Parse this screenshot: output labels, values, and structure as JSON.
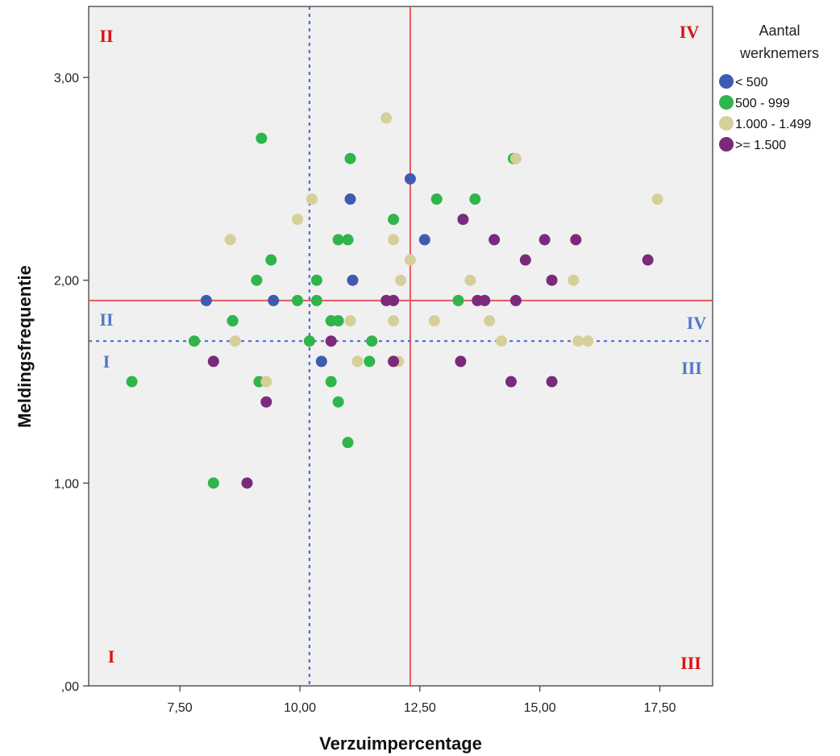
{
  "chart_data": {
    "type": "scatter",
    "xlabel": "Verzuimpercentage",
    "ylabel": "Meldingsfrequentie",
    "xlim": [
      5.6,
      18.6
    ],
    "ylim": [
      0,
      3.35
    ],
    "x_ticks": [
      7.5,
      10,
      12.5,
      15,
      17.5
    ],
    "x_tick_labels": [
      "7,50",
      "10,00",
      "12,50",
      "15,00",
      "17,50"
    ],
    "y_ticks": [
      0,
      1,
      2,
      3
    ],
    "y_tick_labels": [
      ",00",
      "1,00",
      "2,00",
      "3,00"
    ],
    "grid": false,
    "background": "#f0f0f0",
    "legend": {
      "title": "Aantal werknemers",
      "title_lines": [
        "Aantal",
        "werknemers"
      ],
      "placement": "right-top"
    },
    "reference_lines": [
      {
        "orientation": "vertical",
        "value": 12.3,
        "style": "solid",
        "color": "#e8575c"
      },
      {
        "orientation": "horizontal",
        "value": 1.9,
        "style": "solid",
        "color": "#e8575c"
      },
      {
        "orientation": "vertical",
        "value": 10.2,
        "style": "dotted",
        "color": "#4a6fd1"
      },
      {
        "orientation": "horizontal",
        "value": 1.7,
        "style": "dotted",
        "color": "#4a6fd1"
      }
    ],
    "quadrant_labels": [
      {
        "text": "II",
        "color": "#dd1111",
        "position": "top-left"
      },
      {
        "text": "IV",
        "color": "#dd1111",
        "position": "top-right"
      },
      {
        "text": "I",
        "color": "#dd1111",
        "position": "bottom-left"
      },
      {
        "text": "III",
        "color": "#dd1111",
        "position": "bottom-right"
      },
      {
        "text": "II",
        "color": "#5577cc",
        "position": "left-above-dotted"
      },
      {
        "text": "I",
        "color": "#5577cc",
        "position": "left-below-dotted"
      },
      {
        "text": "IV",
        "color": "#5577cc",
        "position": "right-above-dotted"
      },
      {
        "text": "III",
        "color": "#5577cc",
        "position": "right-below-dotted"
      }
    ],
    "series": [
      {
        "name": "< 500",
        "color": "#3f5bb0",
        "points": [
          [
            8.05,
            1.9
          ],
          [
            8.6,
            1.8
          ],
          [
            9.45,
            1.9
          ],
          [
            10.45,
            1.6
          ],
          [
            11.05,
            2.4
          ],
          [
            11.1,
            2.0
          ],
          [
            12.3,
            2.5
          ],
          [
            12.6,
            2.2
          ]
        ]
      },
      {
        "name": "500 - 999",
        "color": "#2fb54a",
        "points": [
          [
            6.5,
            1.5
          ],
          [
            7.8,
            1.7
          ],
          [
            8.2,
            1.0
          ],
          [
            8.6,
            1.8
          ],
          [
            9.1,
            2.0
          ],
          [
            9.2,
            2.7
          ],
          [
            9.15,
            1.5
          ],
          [
            9.4,
            2.1
          ],
          [
            9.95,
            1.9
          ],
          [
            10.2,
            1.7
          ],
          [
            10.35,
            2.0
          ],
          [
            10.35,
            1.9
          ],
          [
            10.65,
            1.8
          ],
          [
            10.65,
            1.5
          ],
          [
            10.8,
            1.8
          ],
          [
            10.8,
            2.2
          ],
          [
            10.8,
            1.4
          ],
          [
            11.0,
            2.2
          ],
          [
            11.05,
            2.6
          ],
          [
            11.0,
            1.2
          ],
          [
            11.45,
            1.6
          ],
          [
            11.5,
            1.7
          ],
          [
            11.95,
            2.3
          ],
          [
            12.85,
            2.4
          ],
          [
            13.3,
            1.9
          ],
          [
            13.65,
            2.4
          ],
          [
            14.45,
            2.6
          ]
        ]
      },
      {
        "name": "1.000 - 1.499",
        "color": "#d6cf9a",
        "points": [
          [
            8.55,
            2.2
          ],
          [
            8.65,
            1.7
          ],
          [
            9.3,
            1.5
          ],
          [
            9.95,
            2.3
          ],
          [
            10.25,
            2.4
          ],
          [
            11.05,
            1.8
          ],
          [
            11.2,
            1.6
          ],
          [
            11.8,
            2.8
          ],
          [
            11.95,
            2.2
          ],
          [
            11.95,
            1.8
          ],
          [
            12.05,
            1.6
          ],
          [
            12.1,
            2.0
          ],
          [
            12.3,
            2.1
          ],
          [
            12.8,
            1.8
          ],
          [
            13.55,
            2.0
          ],
          [
            13.95,
            1.8
          ],
          [
            14.2,
            1.7
          ],
          [
            14.5,
            2.6
          ],
          [
            15.7,
            2.0
          ],
          [
            15.8,
            1.7
          ],
          [
            16.0,
            1.7
          ],
          [
            17.45,
            2.4
          ]
        ]
      },
      {
        "name": ">= 1.500",
        "color": "#7b2a7b",
        "points": [
          [
            8.2,
            1.6
          ],
          [
            8.9,
            1.0
          ],
          [
            9.3,
            1.4
          ],
          [
            10.65,
            1.7
          ],
          [
            11.8,
            1.9
          ],
          [
            11.95,
            1.9
          ],
          [
            11.95,
            1.6
          ],
          [
            13.35,
            1.6
          ],
          [
            13.4,
            2.3
          ],
          [
            13.7,
            1.9
          ],
          [
            13.85,
            1.9
          ],
          [
            14.05,
            2.2
          ],
          [
            14.4,
            1.5
          ],
          [
            14.5,
            1.9
          ],
          [
            14.7,
            2.1
          ],
          [
            15.1,
            2.2
          ],
          [
            15.25,
            2.0
          ],
          [
            15.25,
            1.5
          ],
          [
            15.75,
            2.2
          ],
          [
            17.25,
            2.1
          ]
        ]
      }
    ]
  }
}
